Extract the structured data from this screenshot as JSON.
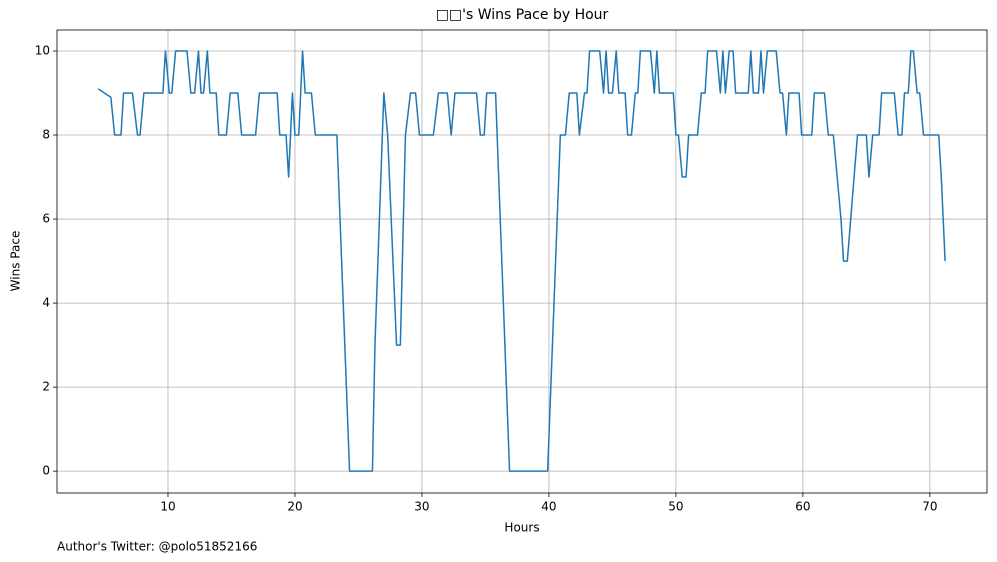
{
  "chart_data": {
    "type": "line",
    "title": "□□'s Wins Pace by Hour",
    "x_label": "Hours",
    "y_label": "Wins Pace",
    "footnote": "Author's Twitter: @polo51852166",
    "color": "#1f77b4",
    "grid": true,
    "xlim": [
      1.26,
      74.5
    ],
    "ylim": [
      -0.52,
      10.5
    ],
    "xticks": [
      10,
      20,
      30,
      40,
      50,
      60,
      70
    ],
    "yticks": [
      0,
      2,
      4,
      6,
      8,
      10
    ],
    "x": [
      4.5,
      5.5,
      5.8,
      6.3,
      6.5,
      7.2,
      7.6,
      7.8,
      8.1,
      9.6,
      9.8,
      10.1,
      10.3,
      10.6,
      11.5,
      11.8,
      12.1,
      12.4,
      12.6,
      12.8,
      13.1,
      13.3,
      13.8,
      14.0,
      14.6,
      14.9,
      15.5,
      15.8,
      16.9,
      17.2,
      18.6,
      18.8,
      19.3,
      19.5,
      19.8,
      20.0,
      20.3,
      20.6,
      20.8,
      21.3,
      21.6,
      23.3,
      24.3,
      26.1,
      26.3,
      27.0,
      27.3,
      28.0,
      28.3,
      28.7,
      29.1,
      29.5,
      29.8,
      30.9,
      31.3,
      32.0,
      32.3,
      32.6,
      34.3,
      34.6,
      34.9,
      35.1,
      35.8,
      36.9,
      39.9,
      40.9,
      41.3,
      41.6,
      42.2,
      42.4,
      42.8,
      43.0,
      43.2,
      44.0,
      44.3,
      44.5,
      44.7,
      45.0,
      45.3,
      45.5,
      46.0,
      46.2,
      46.5,
      46.8,
      47.0,
      47.2,
      48.0,
      48.3,
      48.5,
      48.7,
      49.8,
      50.0,
      50.2,
      50.5,
      50.8,
      51.0,
      51.7,
      52.0,
      52.3,
      52.5,
      53.2,
      53.5,
      53.7,
      53.9,
      54.2,
      54.5,
      54.7,
      55.7,
      55.9,
      56.1,
      56.5,
      56.7,
      56.9,
      57.2,
      57.9,
      58.2,
      58.4,
      58.7,
      58.9,
      59.7,
      59.9,
      60.7,
      60.9,
      61.7,
      62.0,
      62.4,
      63.0,
      63.2,
      63.5,
      64.3,
      65.0,
      65.2,
      65.5,
      66.0,
      66.2,
      67.2,
      67.5,
      67.8,
      68.0,
      68.3,
      68.5,
      68.7,
      69.0,
      69.2,
      69.5,
      70.5,
      70.7,
      70.9,
      71.2
    ],
    "values": [
      9.1,
      8.9,
      8,
      8,
      9,
      9,
      8,
      8,
      9,
      9,
      10,
      9,
      9,
      10,
      10,
      9,
      9,
      10,
      9,
      9,
      10,
      9,
      9,
      8,
      8,
      9,
      9,
      8,
      8,
      9,
      9,
      8,
      8,
      7,
      9,
      8,
      8,
      10,
      9,
      9,
      8,
      8,
      0,
      0,
      3,
      9,
      8,
      3,
      3,
      8,
      9,
      9,
      8,
      8,
      9,
      9,
      8,
      9,
      9,
      8,
      8,
      9,
      9,
      0,
      0,
      8,
      8,
      9,
      9,
      8,
      9,
      9,
      10,
      10,
      9,
      10,
      9,
      9,
      10,
      9,
      9,
      8,
      8,
      9,
      9,
      10,
      10,
      9,
      10,
      9,
      9,
      8,
      8,
      7,
      7,
      8,
      8,
      9,
      9,
      10,
      10,
      9,
      10,
      9,
      10,
      10,
      9,
      9,
      10,
      9,
      9,
      10,
      9,
      10,
      10,
      9,
      9,
      8,
      9,
      9,
      8,
      8,
      9,
      9,
      8,
      8,
      6,
      5,
      5,
      8,
      8,
      7,
      8,
      8,
      9,
      9,
      8,
      8,
      9,
      9,
      10,
      10,
      9,
      9,
      8,
      8,
      8,
      7,
      5
    ]
  }
}
